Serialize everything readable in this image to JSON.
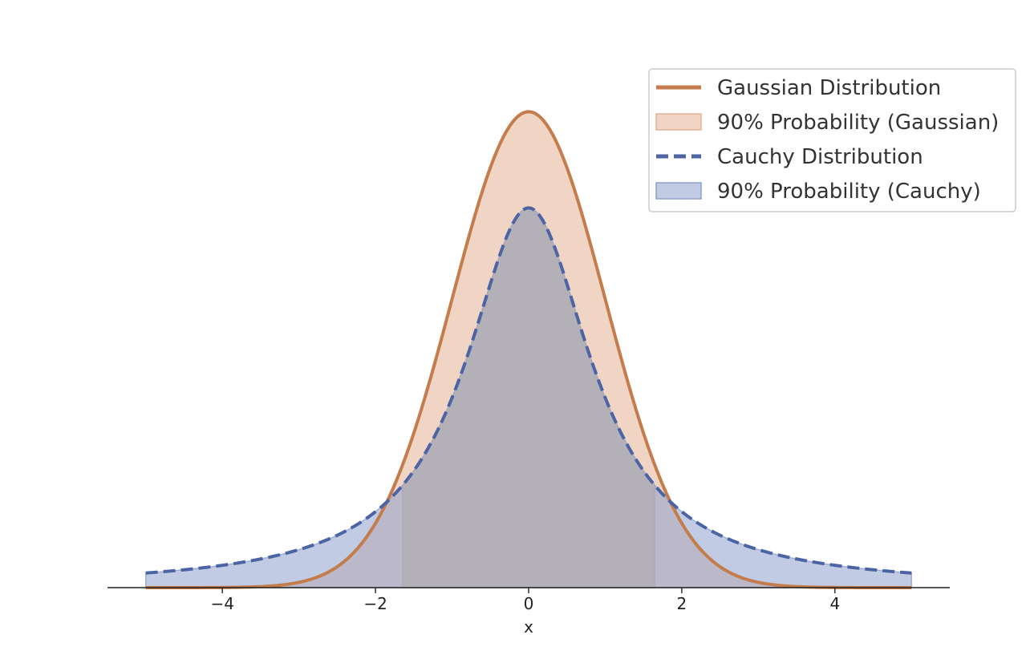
{
  "chart_data": {
    "type": "line",
    "title": "",
    "xlabel": "x",
    "ylabel": "",
    "xlim": [
      -5.5,
      5.5
    ],
    "ylim": [
      0,
      0.42
    ],
    "x_domain": [
      -5,
      5
    ],
    "x_ticks": [
      -4,
      -2,
      0,
      2,
      4
    ],
    "x_tick_labels": [
      "−4",
      "−2",
      "0",
      "2",
      "4"
    ],
    "y_ticks_visible": false,
    "grid": false,
    "legend_position": "top-right",
    "series": [
      {
        "name": "Gaussian Distribution",
        "kind": "line",
        "style": "solid",
        "color": "#c47c4c",
        "distribution": "normal",
        "mean": 0,
        "std": 1,
        "peak": 0.399
      },
      {
        "name": "90% Probability (Gaussian)",
        "kind": "area",
        "color": "#e4b296",
        "opacity": 0.55,
        "interval": [
          -5,
          5
        ]
      },
      {
        "name": "Cauchy Distribution",
        "kind": "line",
        "style": "dashed",
        "color": "#4c64a4",
        "distribution": "cauchy",
        "location": 0,
        "scale": 1,
        "peak": 0.318
      },
      {
        "name": "90% Probability (Cauchy)",
        "kind": "area",
        "color": "#8ea0cc",
        "opacity": 0.55,
        "interval": [
          -5,
          5
        ]
      }
    ],
    "central_interval": [
      -1.645,
      1.645
    ],
    "overlap_color": "#b4b0b8"
  }
}
